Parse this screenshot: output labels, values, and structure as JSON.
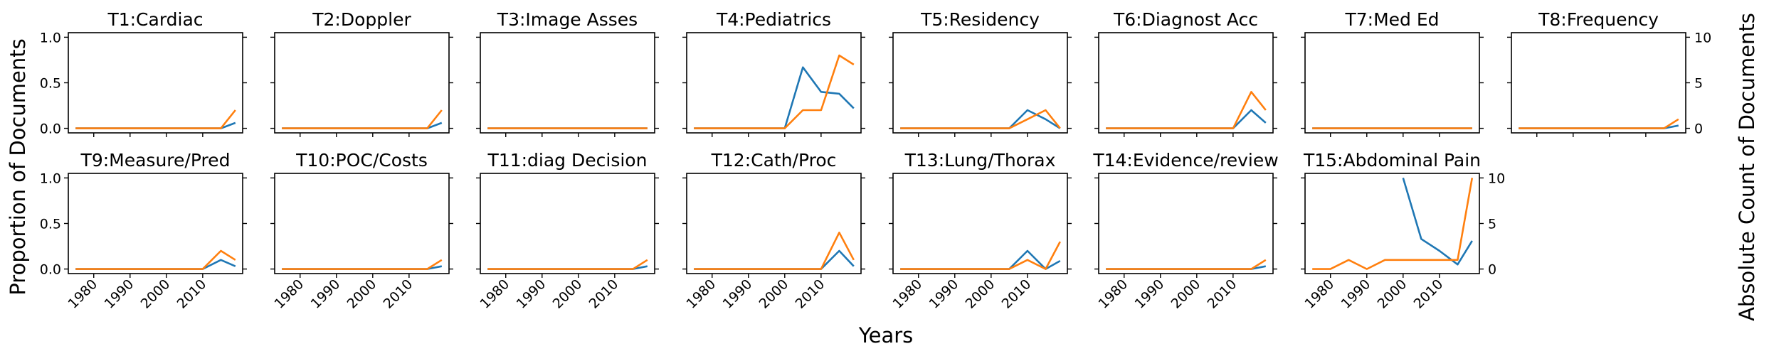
{
  "figure": {
    "xlabel": "Years",
    "ylabel_left": "Proportion of Documents",
    "ylabel_right": "Absolute Count of Documents"
  },
  "colors": {
    "proportion": "#1f77b4",
    "count": "#ff7f0e"
  },
  "chart_data": {
    "type": "line",
    "x": [
      1975,
      1980,
      1985,
      1990,
      1995,
      2000,
      2005,
      2010,
      2015,
      2019
    ],
    "xticks": [
      1980,
      1990,
      2000,
      2010
    ],
    "xlim": [
      1973,
      2021
    ],
    "left_axis": {
      "ylim": [
        -0.05,
        1.05
      ],
      "ticks": [
        0.0,
        0.5,
        1.0
      ],
      "tick_labels": [
        "0.0",
        "0.5",
        "1.0"
      ]
    },
    "right_axis": {
      "ylim": [
        -0.5,
        10.5
      ],
      "ticks": [
        0,
        5,
        10
      ],
      "tick_labels": [
        "0",
        "5",
        "10"
      ]
    },
    "panels": [
      {
        "title": "T1:Cardiac",
        "proportion": [
          0,
          0,
          0,
          0,
          0,
          0,
          0,
          0,
          0,
          0.06
        ],
        "count": [
          0,
          0,
          0,
          0,
          0,
          0,
          0,
          0,
          0,
          2
        ]
      },
      {
        "title": "T2:Doppler",
        "proportion": [
          0,
          0,
          0,
          0,
          0,
          0,
          0,
          0,
          0,
          0.06
        ],
        "count": [
          0,
          0,
          0,
          0,
          0,
          0,
          0,
          0,
          0,
          2
        ]
      },
      {
        "title": "T3:Image Asses",
        "proportion": [
          0,
          0,
          0,
          0,
          0,
          0,
          0,
          0,
          0,
          0
        ],
        "count": [
          0,
          0,
          0,
          0,
          0,
          0,
          0,
          0,
          0,
          0
        ]
      },
      {
        "title": "T4:Pediatrics",
        "proportion": [
          0,
          0,
          0,
          0,
          0,
          0,
          0.67,
          0.4,
          0.38,
          0.22
        ],
        "count": [
          0,
          0,
          0,
          0,
          0,
          0,
          2,
          2,
          8,
          7
        ]
      },
      {
        "title": "T5:Residency",
        "proportion": [
          0,
          0,
          0,
          0,
          0,
          0,
          0,
          0.2,
          0.1,
          0
        ],
        "count": [
          0,
          0,
          0,
          0,
          0,
          0,
          0,
          1,
          2,
          0
        ]
      },
      {
        "title": "T6:Diagnost Acc",
        "proportion": [
          0,
          0,
          0,
          0,
          0,
          0,
          0,
          0,
          0.2,
          0.06
        ],
        "count": [
          0,
          0,
          0,
          0,
          0,
          0,
          0,
          0,
          4,
          2
        ]
      },
      {
        "title": "T7:Med Ed",
        "proportion": [
          0,
          0,
          0,
          0,
          0,
          0,
          0,
          0,
          0,
          0
        ],
        "count": [
          0,
          0,
          0,
          0,
          0,
          0,
          0,
          0,
          0,
          0
        ]
      },
      {
        "title": "T8:Frequency",
        "proportion": [
          0,
          0,
          0,
          0,
          0,
          0,
          0,
          0,
          0,
          0.03
        ],
        "count": [
          0,
          0,
          0,
          0,
          0,
          0,
          0,
          0,
          0,
          1
        ]
      },
      {
        "title": "T9:Measure/Pred",
        "proportion": [
          0,
          0,
          0,
          0,
          0,
          0,
          0,
          0,
          0.1,
          0.03
        ],
        "count": [
          0,
          0,
          0,
          0,
          0,
          0,
          0,
          0,
          2,
          1
        ]
      },
      {
        "title": "T10:POC/Costs",
        "proportion": [
          0,
          0,
          0,
          0,
          0,
          0,
          0,
          0,
          0,
          0.03
        ],
        "count": [
          0,
          0,
          0,
          0,
          0,
          0,
          0,
          0,
          0,
          1
        ]
      },
      {
        "title": "T11:diag Decision",
        "proportion": [
          0,
          0,
          0,
          0,
          0,
          0,
          0,
          0,
          0,
          0.03
        ],
        "count": [
          0,
          0,
          0,
          0,
          0,
          0,
          0,
          0,
          0,
          1
        ]
      },
      {
        "title": "T12:Cath/Proc",
        "proportion": [
          0,
          0,
          0,
          0,
          0,
          0,
          0,
          0,
          0.2,
          0.03
        ],
        "count": [
          0,
          0,
          0,
          0,
          0,
          0,
          0,
          0,
          4,
          1
        ]
      },
      {
        "title": "T13:Lung/Thorax",
        "proportion": [
          0,
          0,
          0,
          0,
          0,
          0,
          0,
          0.2,
          0,
          0.09
        ],
        "count": [
          0,
          0,
          0,
          0,
          0,
          0,
          0,
          1,
          0,
          3
        ]
      },
      {
        "title": "T14:Evidence/review",
        "proportion": [
          0,
          0,
          0,
          0,
          0,
          0,
          0,
          0,
          0,
          0.03
        ],
        "count": [
          0,
          0,
          0,
          0,
          0,
          0,
          0,
          0,
          0,
          1
        ]
      },
      {
        "title": "T15:Abdominal Pain",
        "proportion": [
          null,
          null,
          null,
          null,
          null,
          1.0,
          0.33,
          0.2,
          0.05,
          0.31
        ],
        "count": [
          0,
          0,
          1,
          0,
          1,
          1,
          1,
          1,
          1,
          10
        ]
      }
    ]
  }
}
